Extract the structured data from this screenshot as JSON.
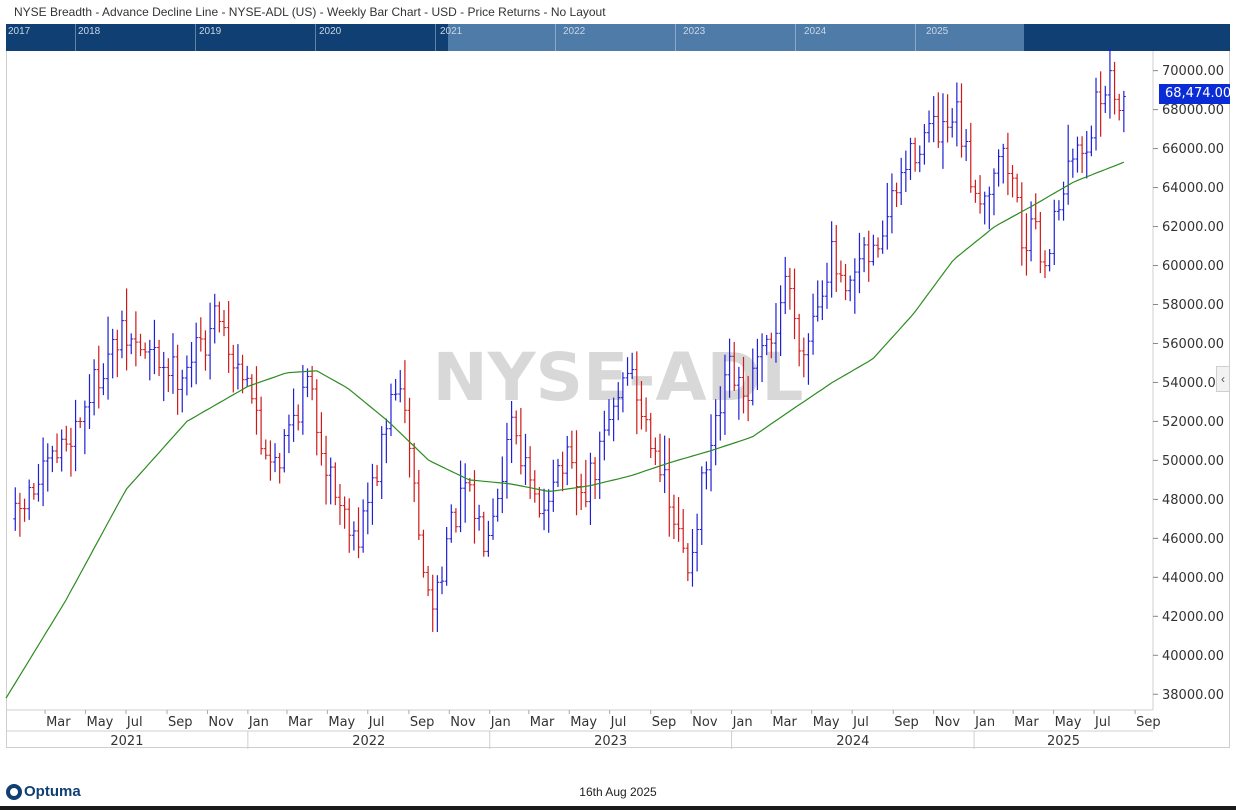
{
  "header": {
    "title": "NYSE Breadth - Advance Decline Line - NYSE-ADL (US) - Weekly Bar Chart - USD - Price Returns - No Layout"
  },
  "navigator": {
    "years": [
      "2017",
      "2018",
      "2019",
      "2020",
      "2021",
      "2022",
      "2023",
      "2024",
      "2025"
    ]
  },
  "watermark": "NYSE-ADL",
  "current_price_label": "68,474.00",
  "footer": {
    "brand": "Optuma",
    "date": "16th Aug 2025"
  },
  "colors": {
    "up_bar": "#1f1fd6",
    "down_bar": "#d01818",
    "moving_average": "#2e8b22",
    "navigator_bg": "#0f3f73",
    "navigator_window": "#4f7ba8",
    "price_box": "#0a2bd6"
  },
  "chart_data": {
    "type": "bar",
    "bar_style": "OHLC weekly bars",
    "x_axis": {
      "month_labels": [
        "Mar",
        "May",
        "Jul",
        "Sep",
        "Nov",
        "Jan",
        "Mar",
        "May",
        "Jul",
        "Sep",
        "Nov",
        "Jan",
        "Mar",
        "May",
        "Jul",
        "Sep",
        "Nov",
        "Jan",
        "Mar",
        "May",
        "Jul",
        "Sep",
        "Nov",
        "Jan",
        "Mar",
        "May",
        "Jul",
        "Sep"
      ],
      "year_labels": [
        "2021",
        "2022",
        "2023",
        "2024",
        "2025"
      ]
    },
    "y_axis": {
      "min": 37500,
      "max": 70700,
      "ticks": [
        "70000.00",
        "68000.00",
        "66000.00",
        "64000.00",
        "62000.00",
        "60000.00",
        "58000.00",
        "56000.00",
        "54000.00",
        "52000.00",
        "50000.00",
        "48000.00",
        "46000.00",
        "44000.00",
        "42000.00",
        "40000.00",
        "38000.00"
      ],
      "position": "right"
    },
    "last_value": 68474,
    "price_anchors": [
      [
        "2021-01-15",
        47000
      ],
      [
        "2021-03-05",
        49500
      ],
      [
        "2021-04-16",
        51800
      ],
      [
        "2021-05-28",
        55000
      ],
      [
        "2021-06-25",
        56300
      ],
      [
        "2021-08-06",
        55400
      ],
      [
        "2021-09-17",
        54500
      ],
      [
        "2021-10-29",
        56200
      ],
      [
        "2021-11-19",
        57800
      ],
      [
        "2021-12-10",
        55000
      ],
      [
        "2021-12-31",
        54700
      ],
      [
        "2022-01-21",
        50800
      ],
      [
        "2022-02-18",
        50200
      ],
      [
        "2022-03-11",
        52300
      ],
      [
        "2022-04-01",
        53900
      ],
      [
        "2022-04-29",
        50000
      ],
      [
        "2022-05-20",
        47800
      ],
      [
        "2022-06-17",
        46200
      ],
      [
        "2022-07-15",
        49500
      ],
      [
        "2022-08-12",
        54000
      ],
      [
        "2022-09-02",
        51000
      ],
      [
        "2022-09-23",
        44000
      ],
      [
        "2022-10-07",
        42500
      ],
      [
        "2022-10-28",
        45800
      ],
      [
        "2022-11-25",
        48500
      ],
      [
        "2022-12-23",
        46200
      ],
      [
        "2023-01-20",
        49500
      ],
      [
        "2023-02-03",
        52500
      ],
      [
        "2023-02-24",
        49500
      ],
      [
        "2023-03-17",
        46800
      ],
      [
        "2023-04-07",
        49500
      ],
      [
        "2023-04-28",
        49800
      ],
      [
        "2023-05-19",
        48000
      ],
      [
        "2023-06-09",
        49500
      ],
      [
        "2023-06-30",
        52000
      ],
      [
        "2023-07-28",
        55000
      ],
      [
        "2023-08-18",
        52500
      ],
      [
        "2023-09-08",
        51000
      ],
      [
        "2023-09-29",
        47500
      ],
      [
        "2023-10-27",
        44500
      ],
      [
        "2023-11-17",
        48500
      ],
      [
        "2023-12-08",
        51500
      ],
      [
        "2023-12-29",
        54500
      ],
      [
        "2024-01-19",
        53000
      ],
      [
        "2024-02-09",
        54800
      ],
      [
        "2024-03-01",
        55800
      ],
      [
        "2024-03-22",
        59500
      ],
      [
        "2024-04-19",
        55500
      ],
      [
        "2024-05-10",
        58500
      ],
      [
        "2024-05-31",
        60500
      ],
      [
        "2024-06-21",
        58000
      ],
      [
        "2024-07-12",
        60000
      ],
      [
        "2024-08-02",
        60500
      ],
      [
        "2024-08-23",
        62500
      ],
      [
        "2024-09-13",
        64500
      ],
      [
        "2024-10-04",
        66000
      ],
      [
        "2024-10-25",
        67000
      ],
      [
        "2024-11-15",
        66500
      ],
      [
        "2024-12-06",
        67500
      ],
      [
        "2024-12-27",
        64500
      ],
      [
        "2025-01-17",
        63500
      ],
      [
        "2025-02-07",
        66000
      ],
      [
        "2025-02-28",
        64500
      ],
      [
        "2025-03-14",
        61500
      ],
      [
        "2025-04-04",
        61500
      ],
      [
        "2025-04-18",
        60000
      ],
      [
        "2025-05-09",
        63500
      ],
      [
        "2025-05-30",
        65500
      ],
      [
        "2025-06-20",
        66500
      ],
      [
        "2025-07-11",
        68800
      ],
      [
        "2025-07-25",
        69300
      ],
      [
        "2025-08-15",
        68474
      ]
    ],
    "ma_anchors": [
      [
        "2021-01-01",
        37800
      ],
      [
        "2021-04-01",
        42800
      ],
      [
        "2021-07-01",
        48500
      ],
      [
        "2021-10-01",
        52000
      ],
      [
        "2022-01-01",
        53800
      ],
      [
        "2022-03-01",
        54500
      ],
      [
        "2022-04-15",
        54600
      ],
      [
        "2022-06-01",
        53700
      ],
      [
        "2022-08-01",
        52000
      ],
      [
        "2022-10-01",
        50000
      ],
      [
        "2022-12-01",
        49000
      ],
      [
        "2023-02-01",
        48800
      ],
      [
        "2023-04-01",
        48400
      ],
      [
        "2023-06-01",
        48700
      ],
      [
        "2023-08-01",
        49200
      ],
      [
        "2023-10-01",
        49900
      ],
      [
        "2023-12-01",
        50500
      ],
      [
        "2024-02-01",
        51200
      ],
      [
        "2024-04-01",
        52600
      ],
      [
        "2024-06-01",
        54000
      ],
      [
        "2024-08-01",
        55200
      ],
      [
        "2024-10-01",
        57500
      ],
      [
        "2024-12-01",
        60300
      ],
      [
        "2025-02-01",
        62000
      ],
      [
        "2025-04-01",
        63100
      ],
      [
        "2025-06-01",
        64300
      ],
      [
        "2025-08-15",
        65300
      ]
    ]
  }
}
